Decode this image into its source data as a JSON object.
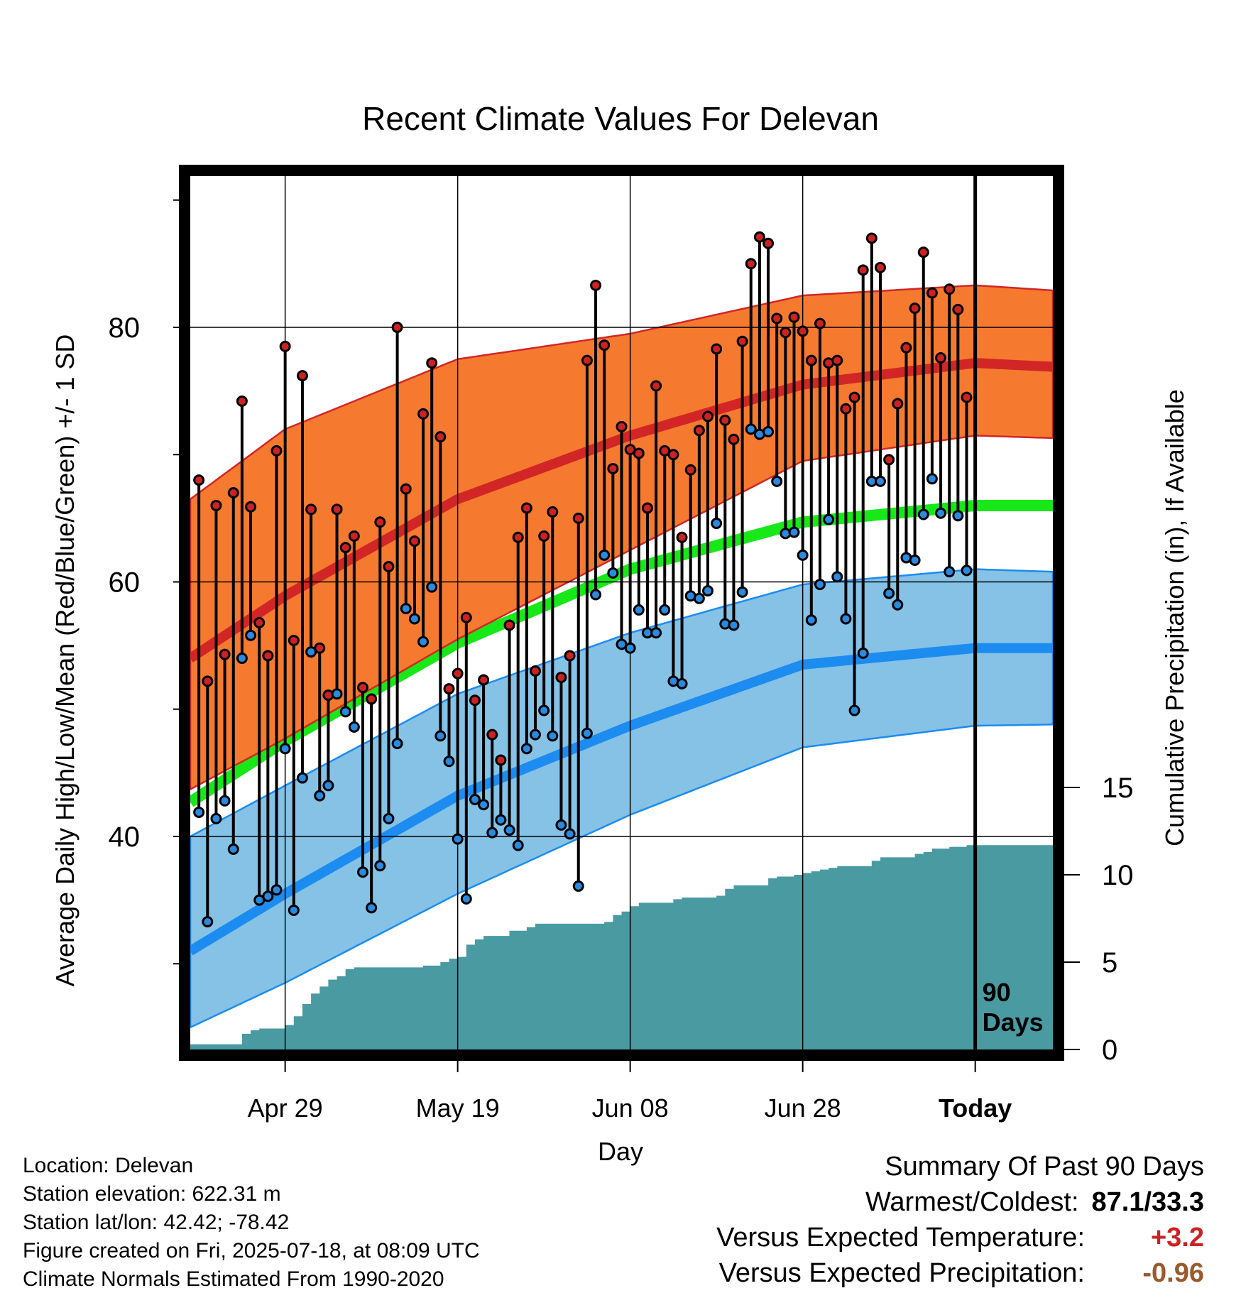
{
  "chart_data": {
    "type": "line",
    "title": "Recent Climate Values For Delevan",
    "xlabel": "Day",
    "ylabel_left": "Average Daily High/Low/Mean (Red/Blue/Green) +/- 1 SD",
    "ylabel_right": "Cumulative Precipitation (in), If Available",
    "x_tick_labels": [
      "Apr 29",
      "May 19",
      "Jun 08",
      "Jun 28",
      "Today"
    ],
    "x_tick_days": [
      10,
      30,
      50,
      70,
      90
    ],
    "x_range": [
      -1,
      99
    ],
    "ylim_left": [
      25,
      94
    ],
    "y_ticks_left": [
      40,
      60,
      80
    ],
    "ylim_right": [
      0,
      65
    ],
    "y_ticks_right": [
      0,
      5,
      10,
      15
    ],
    "grid": true,
    "today_marker": "90\nDays",
    "normals": {
      "high_mean": {
        "day": [
          -1,
          10,
          30,
          50,
          70,
          90,
          99
        ],
        "value": [
          54.0,
          58.9,
          66.5,
          71.5,
          75.5,
          77.2,
          76.9
        ]
      },
      "high_sd_upper": {
        "day": [
          -1,
          10,
          30,
          50,
          70,
          90,
          99
        ],
        "value": [
          66.5,
          72.0,
          77.5,
          79.5,
          82.5,
          83.3,
          82.9
        ]
      },
      "high_sd_lower": {
        "day": [
          -1,
          10,
          30,
          50,
          70,
          90,
          99
        ],
        "value": [
          43.7,
          47.7,
          55.5,
          62.5,
          69.5,
          71.5,
          71.3
        ]
      },
      "mean": {
        "day": [
          -1,
          10,
          30,
          50,
          70,
          90,
          99
        ],
        "value": [
          42.7,
          47.5,
          55.2,
          61.0,
          64.7,
          66.0,
          66.0
        ]
      },
      "low_mean": {
        "day": [
          -1,
          10,
          30,
          50,
          70,
          90,
          99
        ],
        "value": [
          31.0,
          35.5,
          43.2,
          48.7,
          53.5,
          54.8,
          54.8
        ]
      },
      "low_sd_upper": {
        "day": [
          -1,
          10,
          30,
          50,
          70,
          90,
          99
        ],
        "value": [
          40.0,
          44.0,
          51.2,
          56.0,
          59.8,
          61.0,
          60.8
        ]
      },
      "low_sd_lower": {
        "day": [
          -1,
          10,
          30,
          50,
          70,
          90,
          99
        ],
        "value": [
          25.0,
          28.5,
          35.5,
          41.7,
          47.0,
          48.7,
          48.8
        ]
      }
    },
    "daily_high": [
      68.0,
      52.2,
      66.0,
      54.3,
      67.0,
      74.2,
      65.9,
      56.8,
      54.2,
      70.3,
      78.5,
      55.4,
      76.2,
      65.7,
      54.8,
      51.1,
      65.7,
      62.7,
      63.6,
      51.7,
      50.8,
      64.7,
      61.2,
      80.0,
      67.3,
      63.2,
      73.2,
      77.2,
      71.4,
      51.6,
      52.8,
      57.2,
      50.7,
      52.3,
      48.0,
      46.0,
      56.6,
      63.5,
      65.8,
      53.0,
      63.6,
      65.5,
      52.5,
      54.2,
      65.0,
      77.4,
      83.3,
      78.6,
      68.9,
      72.2,
      70.4,
      70.1,
      65.8,
      75.4,
      70.3,
      70.0,
      63.5,
      68.8,
      71.9,
      73.0,
      78.3,
      72.7,
      71.2,
      78.9,
      85.0,
      87.1,
      86.6,
      80.7,
      79.6,
      80.8,
      79.7,
      77.4,
      80.3,
      77.2,
      77.4,
      73.6,
      74.5,
      84.5,
      87.0,
      84.7,
      69.6,
      74.0,
      78.4,
      81.5,
      85.9,
      82.7,
      77.6,
      83.0,
      81.4,
      74.5
    ],
    "daily_low": [
      41.9,
      33.3,
      41.4,
      42.8,
      39.0,
      54.0,
      55.8,
      35.0,
      35.3,
      35.8,
      46.9,
      34.2,
      44.6,
      54.5,
      43.2,
      44.0,
      51.2,
      49.8,
      48.6,
      37.2,
      34.4,
      37.7,
      41.4,
      47.3,
      57.9,
      57.1,
      55.3,
      59.6,
      47.9,
      45.9,
      39.8,
      35.1,
      42.9,
      42.5,
      40.3,
      41.3,
      40.5,
      39.3,
      46.9,
      48.0,
      49.9,
      47.9,
      40.9,
      40.2,
      36.1,
      48.1,
      59.0,
      62.1,
      60.7,
      55.1,
      54.8,
      57.8,
      56.0,
      56.0,
      57.8,
      52.2,
      52.0,
      58.9,
      58.7,
      59.3,
      64.6,
      56.7,
      56.6,
      59.2,
      72.0,
      71.6,
      71.8,
      67.9,
      63.8,
      63.9,
      62.1,
      57.0,
      59.8,
      64.9,
      60.4,
      57.1,
      49.9,
      54.4,
      67.9,
      67.9,
      59.1,
      58.2,
      61.9,
      61.7,
      65.3,
      68.1,
      65.4,
      60.8,
      65.2,
      60.9
    ],
    "cumulative_precip": {
      "day": [
        -1,
        4,
        5,
        6,
        7,
        8,
        10,
        11,
        12,
        13,
        14,
        15,
        16,
        17,
        18,
        26,
        28,
        29,
        30,
        31,
        32,
        33,
        35,
        36,
        38,
        39,
        40,
        47,
        48,
        49,
        50,
        51,
        55,
        56,
        60,
        61,
        62,
        65,
        66,
        67,
        68,
        69,
        70,
        71,
        72,
        73,
        74,
        77,
        78,
        79,
        83,
        84,
        85,
        86,
        87,
        88,
        89,
        90,
        99
      ],
      "value": [
        0.3,
        0.3,
        0.9,
        1.1,
        1.2,
        1.2,
        1.4,
        1.9,
        2.6,
        3.2,
        3.6,
        4.0,
        4.2,
        4.6,
        4.7,
        4.8,
        5.0,
        5.2,
        5.3,
        6.0,
        6.3,
        6.5,
        6.5,
        6.8,
        7.0,
        7.2,
        7.2,
        7.3,
        7.7,
        7.9,
        8.2,
        8.4,
        8.6,
        8.7,
        8.8,
        9.2,
        9.4,
        9.4,
        9.8,
        9.9,
        9.9,
        10.0,
        10.1,
        10.2,
        10.3,
        10.4,
        10.5,
        10.5,
        10.8,
        11.0,
        11.2,
        11.3,
        11.5,
        11.5,
        11.6,
        11.6,
        11.7,
        11.7,
        11.7
      ]
    },
    "colors": {
      "high_band": "#f57a30",
      "high_line": "#d22626",
      "low_band": "#85c2e6",
      "low_line": "#1c8cf0",
      "mean_line": "#18e818",
      "precip": "#4a9aa2",
      "high_dot": "#cc2222",
      "low_dot": "#2a8ae0"
    }
  },
  "station_info": [
    "Location: Delevan",
    "Station elevation: 622.31 m",
    "Station lat/lon: 42.42; -78.42",
    "Figure created on Fri, 2025-07-18, at 08:09 UTC",
    "Climate Normals Estimated From 1990-2020"
  ],
  "summary": {
    "heading": "Summary Of Past 90 Days",
    "warmest_coldest_label": "Warmest/Coldest:",
    "warmest_coldest_value": "87.1/33.3",
    "temp_label": "Versus Expected Temperature:",
    "temp_value": "+3.2",
    "temp_color": "#cc2222",
    "precip_label": "Versus Expected Precipitation:",
    "precip_value": "-0.96",
    "precip_color": "#9a5a2c"
  }
}
